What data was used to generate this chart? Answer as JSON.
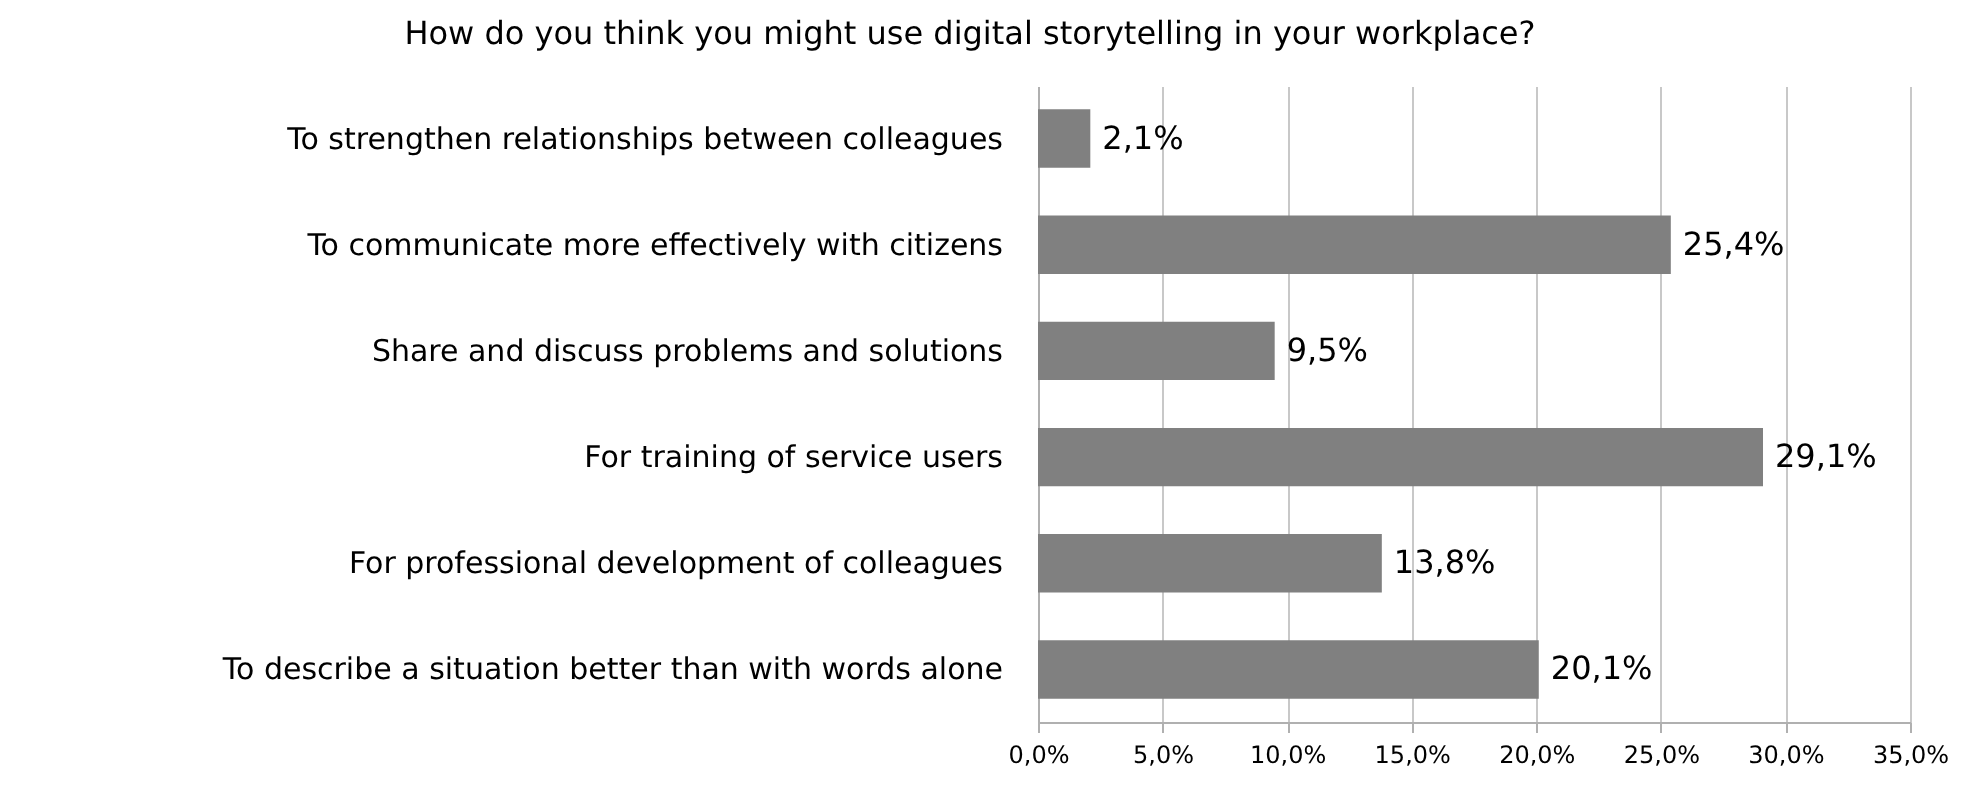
{
  "chart_data": {
    "type": "bar",
    "orientation": "horizontal",
    "title": "How do you think you might use digital storytelling in your workplace?",
    "categories": [
      "To strengthen relationships between colleagues",
      "To communicate more effectively with citizens",
      "Share and discuss problems and solutions",
      "For training of service users",
      "For professional development of colleagues",
      "To describe a situation better than with words alone"
    ],
    "values": [
      2.1,
      25.4,
      9.5,
      29.1,
      13.8,
      20.1
    ],
    "value_labels": [
      "2,1%",
      "25,4%",
      "9,5%",
      "29,1%",
      "13,8%",
      "20,1%"
    ],
    "color": "#808080",
    "xlim": [
      0,
      35
    ],
    "xticks": [
      {
        "value": 0,
        "label": "0,0%"
      },
      {
        "value": 5,
        "label": "5,0%"
      },
      {
        "value": 10,
        "label": "10,0%"
      },
      {
        "value": 15,
        "label": "15,0%"
      },
      {
        "value": 20,
        "label": "20,0%"
      },
      {
        "value": 25,
        "label": "25,0%"
      },
      {
        "value": 30,
        "label": "30,0%"
      },
      {
        "value": 35,
        "label": "35,0%"
      }
    ],
    "grid": "x"
  }
}
